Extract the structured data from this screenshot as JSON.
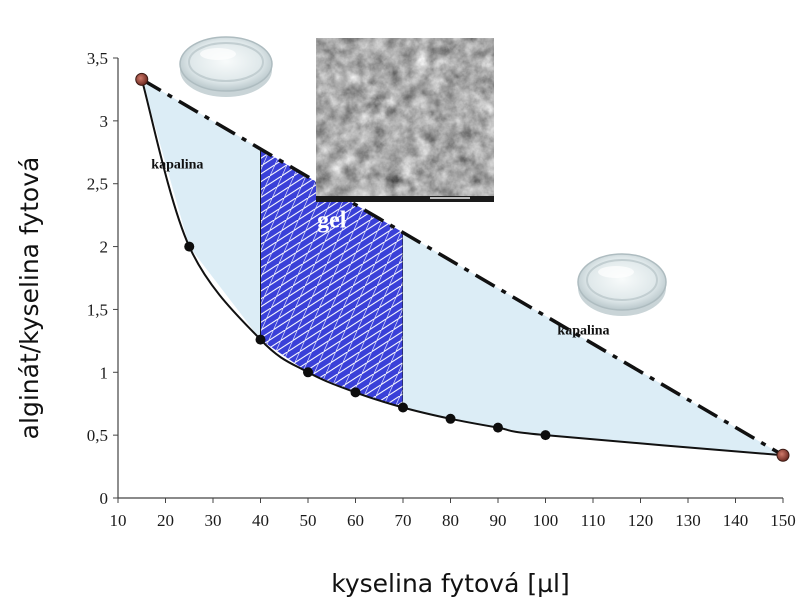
{
  "chart_data": {
    "type": "line",
    "title": "",
    "xlabel": "kyselina fytová [µl]",
    "ylabel": "alginát/kyselina fytová",
    "xlim": [
      10,
      150
    ],
    "ylim": [
      0,
      3.5
    ],
    "x_ticks": [
      10,
      20,
      30,
      40,
      50,
      60,
      70,
      80,
      90,
      100,
      110,
      120,
      130,
      140,
      150
    ],
    "y_ticks": [
      "0",
      "0,5",
      "1",
      "1,5",
      "2",
      "2,5",
      "3",
      "3,5"
    ],
    "y_tick_values": [
      0,
      0.5,
      1,
      1.5,
      2,
      2.5,
      3,
      3.5
    ],
    "grid": false,
    "series": [
      {
        "style": "solid",
        "color": "#111111",
        "x": [
          15,
          25,
          40,
          50,
          60,
          70,
          80,
          90,
          100,
          150
        ],
        "y": [
          3.33,
          2.0,
          1.26,
          1.0,
          0.84,
          0.72,
          0.63,
          0.56,
          0.5,
          0.34
        ]
      },
      {
        "style": "dash-dot",
        "color": "#111111",
        "x": [
          15,
          150
        ],
        "y": [
          3.33,
          0.34
        ]
      }
    ],
    "endpoints": [
      {
        "x": 15,
        "y": 3.33
      },
      {
        "x": 150,
        "y": 0.34
      }
    ],
    "regions": [
      {
        "label": "kapalina",
        "type": "liquid",
        "x_range": [
          15,
          40
        ],
        "color": "#dcedf6"
      },
      {
        "label": "gel",
        "type": "gel",
        "x_range": [
          40,
          70
        ],
        "color": "#3a40d8"
      },
      {
        "label": "kapalina",
        "type": "liquid",
        "x_range": [
          70,
          150
        ],
        "color": "#dcedf6"
      }
    ],
    "region_label_positions": [
      {
        "x": 22.5,
        "y": 2.62
      },
      {
        "x": 55,
        "y": 2.15
      },
      {
        "x": 108,
        "y": 1.3
      }
    ]
  },
  "icons": [
    "petri-dish-icon",
    "sem-micrograph-image",
    "petri-dish-icon"
  ]
}
